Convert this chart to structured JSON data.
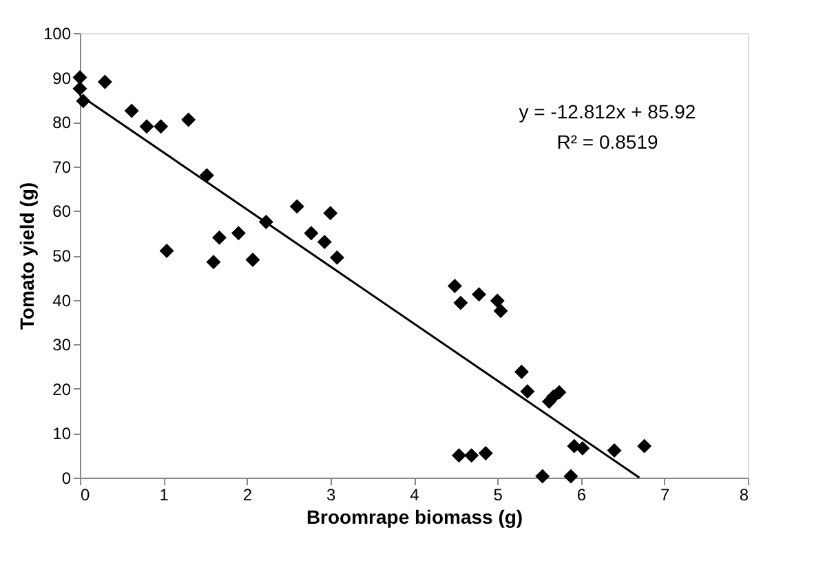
{
  "chart_data": {
    "type": "scatter",
    "xlabel": "Broomrape biomass (g)",
    "ylabel": "Tomato yield (g)",
    "xlim": [
      0,
      8
    ],
    "xticks": [
      0,
      1,
      2,
      3,
      4,
      5,
      6,
      7,
      8
    ],
    "ylim": [
      0,
      100
    ],
    "yticks": [
      0,
      10,
      20,
      30,
      40,
      50,
      60,
      70,
      80,
      90,
      100
    ],
    "grid": false,
    "marker": "diamond",
    "series": [
      {
        "color": "#000000",
        "x": [
          0,
          0,
          0.04,
          0.3,
          0.62,
          0.8,
          0.97,
          1.04,
          1.3,
          1.52,
          1.6,
          1.67,
          1.9,
          2.07,
          2.23,
          2.6,
          2.77,
          2.93,
          3.0,
          3.08,
          4.49,
          4.56,
          4.78,
          5.0,
          5.04,
          5.29,
          5.36,
          5.62,
          5.67,
          5.74,
          4.54,
          4.69,
          4.86,
          5.54,
          5.88,
          5.92,
          6.02,
          6.4,
          6.76
        ],
        "values": [
          90,
          87.5,
          84.7,
          89,
          82.5,
          79,
          79,
          51,
          80.5,
          68,
          48.5,
          54,
          55,
          49,
          57.5,
          61,
          55,
          53,
          59.5,
          49.5,
          43.1,
          39.3,
          41.2,
          39.8,
          37.5,
          23.8,
          19.4,
          17.1,
          18.2,
          19.2,
          5,
          5,
          5.5,
          0.3,
          0.3,
          7.1,
          6.6,
          6.1,
          7.1
        ]
      },
      {
        "type": "line",
        "color": "#000000",
        "marker": "none",
        "x": [
          0,
          6.7
        ],
        "values": [
          86,
          0
        ]
      }
    ],
    "annotations": [
      "y = -12.812x + 85.92",
      "R² = 0.8519"
    ]
  }
}
